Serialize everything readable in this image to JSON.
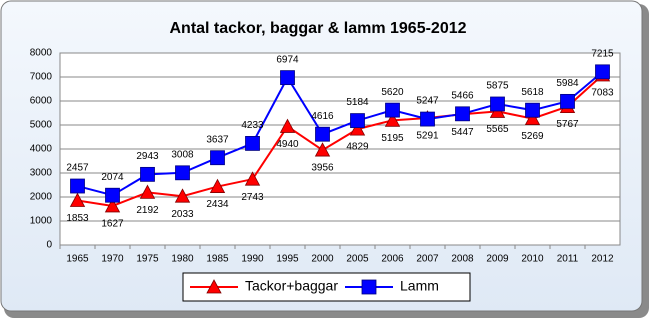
{
  "chart_data": {
    "type": "line",
    "title": "Antal tackor, baggar & lamm  1965-2012",
    "categories": [
      "1965",
      "1970",
      "1975",
      "1980",
      "1985",
      "1990",
      "1995",
      "2000",
      "2005",
      "2006",
      "2007",
      "2008",
      "2009",
      "2010",
      "2011",
      "2012"
    ],
    "series": [
      {
        "name": "Tackor+baggar",
        "color": "#ff0000",
        "marker": "triangle",
        "label_position": "below",
        "values": [
          1853,
          1627,
          2192,
          2033,
          2434,
          2743,
          4940,
          3956,
          4829,
          5195,
          5291,
          5447,
          5565,
          5269,
          5767,
          7083
        ]
      },
      {
        "name": "Lamm",
        "color": "#0000ff",
        "marker": "square",
        "label_position": "above",
        "values": [
          2457,
          2074,
          2943,
          3008,
          3637,
          4233,
          6974,
          4616,
          5184,
          5620,
          5247,
          5466,
          5875,
          5618,
          5984,
          7215
        ]
      }
    ],
    "ylim": [
      0,
      8000
    ],
    "yticks": [
      0,
      1000,
      2000,
      3000,
      4000,
      5000,
      6000,
      7000,
      8000
    ],
    "grid": true,
    "legend": "bottom"
  }
}
